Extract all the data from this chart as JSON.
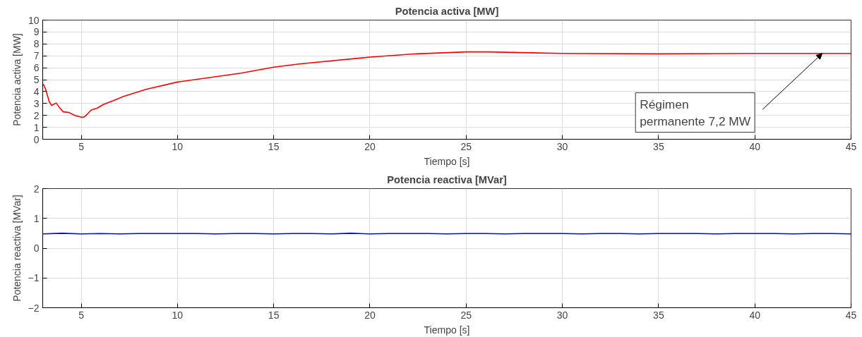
{
  "chart_data": [
    {
      "type": "line",
      "title": "Potencia activa [MW]",
      "xlabel": "Tiempo [s]",
      "ylabel": "Potencia activa [MW]",
      "xlim": [
        3,
        45
      ],
      "ylim": [
        0,
        10
      ],
      "xticks": [
        5,
        10,
        15,
        20,
        25,
        30,
        35,
        40,
        45
      ],
      "yticks": [
        0,
        1,
        2,
        3,
        4,
        5,
        6,
        7,
        8,
        9,
        10
      ],
      "grid": true,
      "series": [
        {
          "color": "#ff0000",
          "x": [
            3.0,
            3.04,
            3.16,
            3.34,
            3.46,
            3.7,
            3.88,
            4.07,
            4.37,
            4.67,
            5.0,
            5.16,
            5.34,
            5.52,
            5.82,
            6.19,
            6.6,
            7.2,
            8.4,
            10,
            13.3,
            15,
            16.4,
            20,
            22.4,
            25,
            26.2,
            30,
            35,
            40,
            45
          ],
          "values": [
            4.55,
            4.6,
            4.15,
            3.15,
            2.84,
            3.04,
            2.64,
            2.3,
            2.24,
            2.0,
            1.85,
            1.87,
            2.14,
            2.46,
            2.6,
            2.94,
            3.2,
            3.6,
            4.2,
            4.8,
            5.55,
            6.05,
            6.33,
            6.89,
            7.17,
            7.33,
            7.33,
            7.2,
            7.17,
            7.2,
            7.2
          ]
        }
      ],
      "annotations": [
        {
          "text": "Régimen\npermanente 7,2 MW",
          "x": 43.5,
          "y": 7.2
        }
      ]
    },
    {
      "type": "line",
      "title": "Potencia reactiva [MVar]",
      "xlabel": "Tiempo [s]",
      "ylabel": "Potencia reactiva [MVar]",
      "xlim": [
        3,
        45
      ],
      "ylim": [
        -2,
        2
      ],
      "xticks": [
        5,
        10,
        15,
        20,
        25,
        30,
        35,
        40,
        45
      ],
      "yticks": [
        -2,
        -1,
        0,
        1,
        2
      ],
      "grid": true,
      "series": [
        {
          "color": "#0000ff",
          "x": [
            3,
            4,
            5,
            6,
            7,
            8,
            9,
            10,
            11,
            12,
            13,
            14,
            15,
            16,
            17,
            18,
            19,
            20,
            21,
            22,
            23,
            24,
            25,
            26,
            27,
            28,
            29,
            30,
            31,
            32,
            33,
            34,
            35,
            36,
            37,
            38,
            39,
            40,
            41,
            42,
            43,
            44,
            45
          ],
          "values": [
            0.48,
            0.5,
            0.48,
            0.49,
            0.48,
            0.49,
            0.49,
            0.49,
            0.49,
            0.48,
            0.49,
            0.49,
            0.48,
            0.49,
            0.49,
            0.48,
            0.5,
            0.48,
            0.49,
            0.49,
            0.49,
            0.48,
            0.49,
            0.49,
            0.48,
            0.49,
            0.49,
            0.49,
            0.48,
            0.49,
            0.49,
            0.48,
            0.49,
            0.49,
            0.49,
            0.48,
            0.49,
            0.49,
            0.49,
            0.48,
            0.49,
            0.49,
            0.48
          ]
        }
      ]
    }
  ]
}
